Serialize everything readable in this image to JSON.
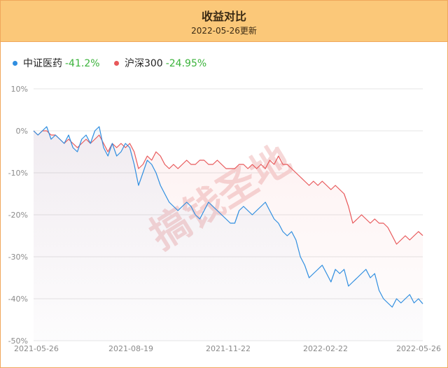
{
  "header": {
    "title": "收益对比",
    "subtitle": "2022-05-26更新"
  },
  "watermark": "搞钱圣地",
  "colors": {
    "header_bg": "#fbc879",
    "border": "#f0a75a",
    "series_blue": "#2f8ee0",
    "series_red": "#e8585a",
    "positive_green": "#3bb33b"
  },
  "chart_data": {
    "type": "line",
    "title": "收益对比",
    "xlabel": "",
    "ylabel": "",
    "ylim": [
      -50,
      10
    ],
    "y_ticks": [
      10,
      0,
      -10,
      -20,
      -30,
      -40,
      -50
    ],
    "y_tick_labels": [
      "10%",
      "0%",
      "-10%",
      "-20%",
      "-30%",
      "-40%",
      "-50%"
    ],
    "x_ticks": [
      "2021-05-26",
      "2021-08-19",
      "2021-11-22",
      "2022-02-22",
      "2022-05-26"
    ],
    "grid": true,
    "legend_position": "top-left",
    "series": [
      {
        "name": "中证医药",
        "final_label": "-41.2%",
        "color": "#2f8ee0",
        "values": [
          0,
          -1,
          0,
          1,
          -2,
          -1,
          -2,
          -3,
          -1,
          -4,
          -5,
          -2,
          -1,
          -3,
          0,
          1,
          -4,
          -6,
          -3,
          -6,
          -5,
          -3,
          -4,
          -8,
          -13,
          -10,
          -7,
          -8,
          -10,
          -13,
          -15,
          -17,
          -18,
          -19,
          -18,
          -17,
          -18,
          -20,
          -21,
          -19,
          -17,
          -18,
          -19,
          -20,
          -21,
          -22,
          -22,
          -19,
          -18,
          -19,
          -20,
          -19,
          -18,
          -17,
          -19,
          -21,
          -22,
          -24,
          -25,
          -24,
          -26,
          -30,
          -32,
          -35,
          -34,
          -33,
          -32,
          -34,
          -36,
          -33,
          -34,
          -33,
          -37,
          -36,
          -35,
          -34,
          -33,
          -35,
          -34,
          -38,
          -40,
          -41,
          -42,
          -40,
          -41,
          -40,
          -39,
          -41,
          -40,
          -41.2
        ]
      },
      {
        "name": "沪深300",
        "final_label": "-24.95%",
        "color": "#e8585a",
        "values": [
          0,
          -1,
          0,
          0,
          -1,
          -1,
          -2,
          -3,
          -2,
          -3,
          -4,
          -3,
          -2,
          -3,
          -2,
          -1,
          -3,
          -5,
          -3,
          -4,
          -3,
          -4,
          -3,
          -5,
          -9,
          -8,
          -6,
          -7,
          -5,
          -6,
          -8,
          -9,
          -8,
          -9,
          -8,
          -7,
          -8,
          -8,
          -7,
          -7,
          -8,
          -8,
          -7,
          -8,
          -9,
          -9,
          -9,
          -8,
          -8,
          -9,
          -8,
          -9,
          -8,
          -9,
          -7,
          -8,
          -6,
          -8,
          -8,
          -9,
          -10,
          -11,
          -12,
          -13,
          -12,
          -13,
          -12,
          -13,
          -14,
          -13,
          -14,
          -15,
          -18,
          -22,
          -21,
          -20,
          -21,
          -22,
          -21,
          -22,
          -22,
          -23,
          -25,
          -27,
          -26,
          -25,
          -26,
          -25,
          -24,
          -24.95
        ]
      }
    ]
  }
}
